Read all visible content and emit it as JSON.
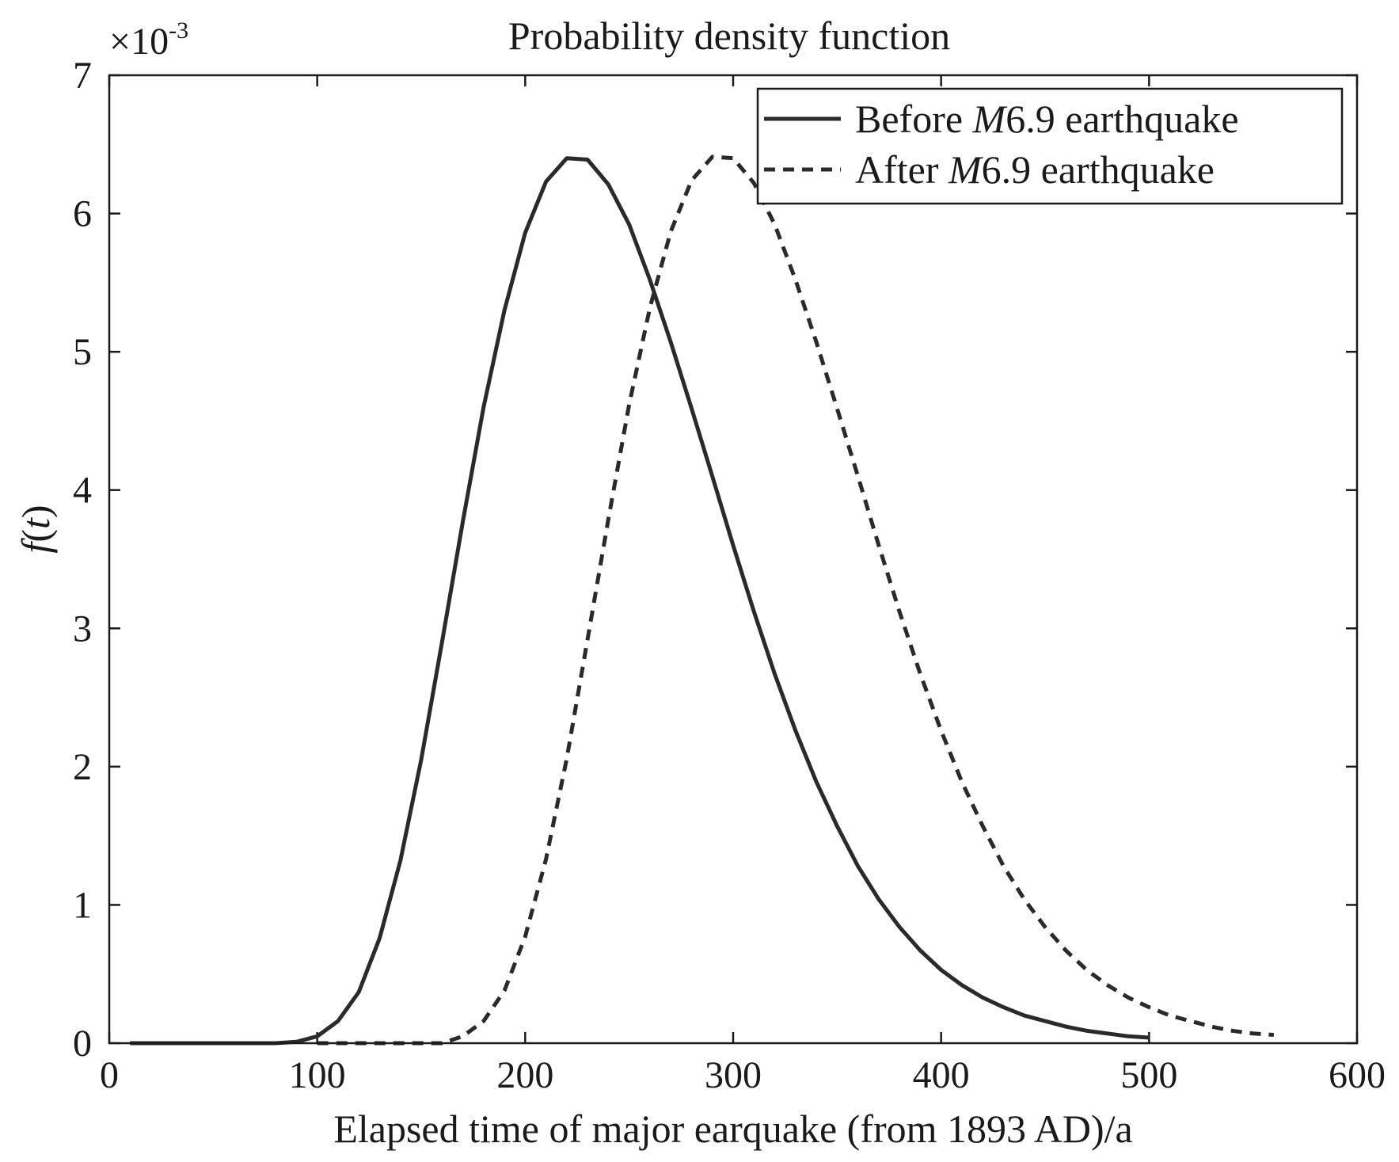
{
  "chart_data": {
    "type": "line",
    "title": "Probability density function",
    "xlabel": "Elapsed time of major earquake (from 1893 AD)/a",
    "ylabel": {
      "func": "f",
      "open": "(",
      "var": "t",
      "close": ")"
    },
    "y_multiplier": {
      "base": "×10",
      "exp": "-3"
    },
    "xlim": [
      0,
      600
    ],
    "ylim": [
      0,
      7
    ],
    "xticks": [
      0,
      100,
      200,
      300,
      400,
      500,
      600
    ],
    "yticks": [
      0,
      1,
      2,
      3,
      4,
      5,
      6,
      7
    ],
    "grid": false,
    "legend_position": "top-right",
    "colors": {
      "line": "#2a2a2a",
      "axis": "#1a1a1a"
    },
    "series": [
      {
        "name": {
          "prefix": "Before ",
          "italic": "M",
          "suffix": "6.9 earthquake"
        },
        "style": "solid",
        "x": [
          10,
          20,
          30,
          40,
          50,
          60,
          70,
          80,
          90,
          100,
          110,
          120,
          130,
          140,
          150,
          160,
          170,
          180,
          190,
          200,
          210,
          220,
          230,
          240,
          250,
          260,
          270,
          280,
          290,
          300,
          310,
          320,
          330,
          340,
          350,
          360,
          370,
          380,
          390,
          400,
          410,
          420,
          430,
          440,
          450,
          460,
          470,
          480,
          490,
          500
        ],
        "y": [
          0,
          0,
          0,
          0,
          0,
          0,
          0,
          0,
          0.01,
          0.05,
          0.16,
          0.37,
          0.76,
          1.32,
          2.05,
          2.9,
          3.77,
          4.6,
          5.3,
          5.86,
          6.23,
          6.4,
          6.39,
          6.21,
          5.92,
          5.52,
          5.07,
          4.59,
          4.1,
          3.6,
          3.12,
          2.67,
          2.26,
          1.89,
          1.57,
          1.28,
          1.04,
          0.84,
          0.67,
          0.53,
          0.42,
          0.33,
          0.26,
          0.2,
          0.16,
          0.12,
          0.09,
          0.07,
          0.05,
          0.04
        ]
      },
      {
        "name": {
          "prefix": "After ",
          "italic": "M",
          "suffix": "6.9 earthquake"
        },
        "style": "dashed",
        "x": [
          100,
          110,
          120,
          130,
          140,
          150,
          160,
          170,
          180,
          190,
          200,
          210,
          220,
          230,
          240,
          250,
          260,
          270,
          280,
          290,
          300,
          310,
          320,
          330,
          340,
          350,
          360,
          370,
          380,
          390,
          400,
          410,
          420,
          430,
          440,
          450,
          460,
          470,
          480,
          490,
          500,
          510,
          520,
          530,
          540,
          550,
          560
        ],
        "y": [
          0,
          0,
          0,
          0,
          0,
          0,
          0,
          0.05,
          0.16,
          0.38,
          0.77,
          1.33,
          2.06,
          2.92,
          3.79,
          4.62,
          5.32,
          5.87,
          6.24,
          6.41,
          6.4,
          6.22,
          5.92,
          5.52,
          5.07,
          4.59,
          4.1,
          3.6,
          3.12,
          2.67,
          2.26,
          1.89,
          1.57,
          1.28,
          1.04,
          0.84,
          0.67,
          0.53,
          0.42,
          0.33,
          0.26,
          0.2,
          0.16,
          0.12,
          0.09,
          0.07,
          0.06
        ]
      }
    ]
  }
}
